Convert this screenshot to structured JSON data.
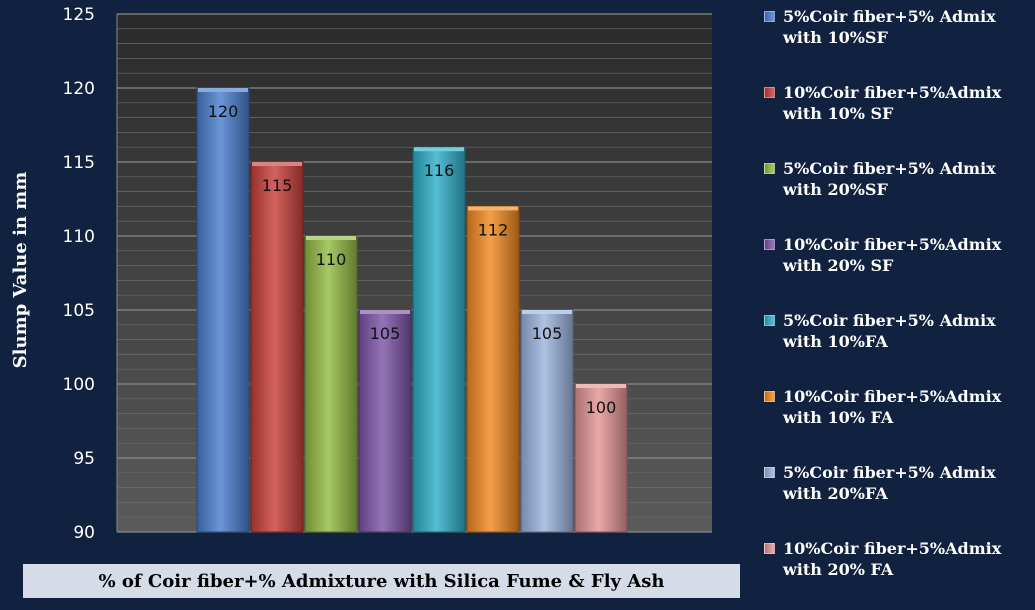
{
  "chart_data": {
    "type": "bar",
    "title": "",
    "xlabel": "% of Coir fiber+% Admixture with Silica Fume & Fly Ash",
    "ylabel": "Slump Value in mm",
    "ylim": [
      90,
      125
    ],
    "yticks": [
      "90",
      "95",
      "100",
      "105",
      "110",
      "115",
      "120",
      "125"
    ],
    "grid": true,
    "legend_position": "right",
    "series": [
      {
        "name": "5%Coir fiber+5% Admix with 10%SF",
        "value": 120,
        "color": "#4a7fcf"
      },
      {
        "name": "10%Coir fiber+5%Admix with 10% SF",
        "value": 115,
        "color": "#c9403c"
      },
      {
        "name": "5%Coir fiber+5% Admix with 20%SF",
        "value": 110,
        "color": "#94bd45"
      },
      {
        "name": "10%Coir fiber+5%Admix with 20% SF",
        "value": 105,
        "color": "#7d55a8"
      },
      {
        "name": "5%Coir fiber+5% Admix with 10%FA",
        "value": 116,
        "color": "#2fb0c9"
      },
      {
        "name": "10%Coir fiber+5%Admix with 10% FA",
        "value": 112,
        "color": "#f28a22"
      },
      {
        "name": "5%Coir fiber+5% Admix with 20%FA",
        "value": 105,
        "color": "#9bb5de"
      },
      {
        "name": "10%Coir fiber+5%Admix with 20% FA",
        "value": 100,
        "color": "#e49595"
      }
    ]
  }
}
